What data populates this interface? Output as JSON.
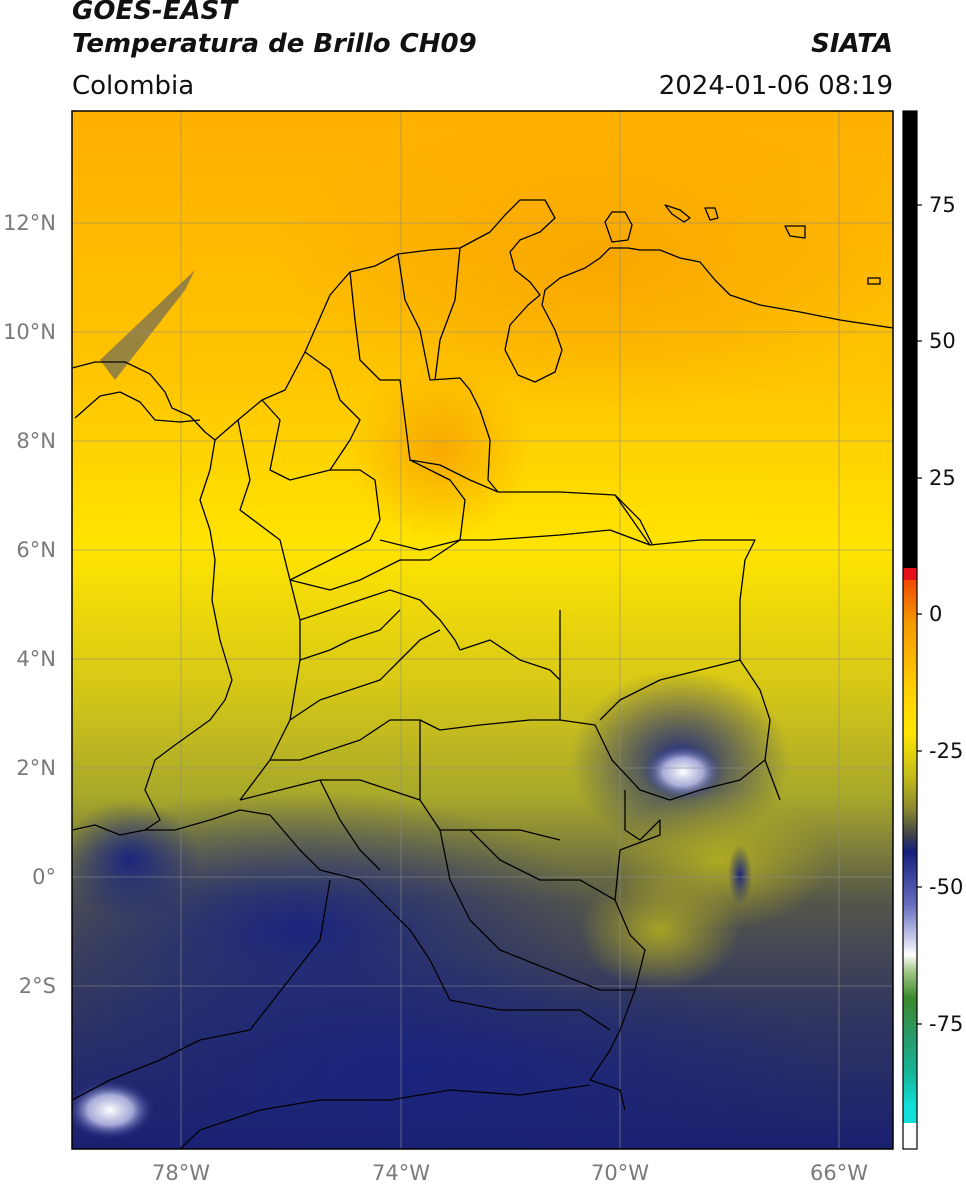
{
  "header": {
    "satellite": "GOES-EAST",
    "product": "Temperatura de Brillo CH09",
    "brand": "SIATA",
    "region": "Colombia",
    "datetime": "2024-01-06 08:19"
  },
  "map": {
    "lat_ticks": [
      "12°N",
      "10°N",
      "8°N",
      "6°N",
      "4°N",
      "2°N",
      "0°",
      "2°S"
    ],
    "lon_ticks": [
      "78°W",
      "74°W",
      "70°W",
      "66°W"
    ],
    "extent": {
      "lon_min": -80,
      "lon_max": -65,
      "lat_min": -5,
      "lat_max": 14
    }
  },
  "colorbar": {
    "ticks": [
      "75",
      "50",
      "25",
      "0",
      "-25",
      "-50",
      "-75"
    ],
    "range": [
      -98,
      90
    ],
    "colors": {
      "top": "#000000",
      "red": "#e8101a",
      "orange": "#f59a00",
      "yellow": "#ffe600",
      "olive": "#b9b51c",
      "gray": "#3f4248",
      "navy": "#141f7e",
      "blue_light": "#b0b4e2",
      "white": "#ffffff",
      "green": "#3a8a2a",
      "teal": "#14b79a",
      "cyan": "#12e0d8"
    }
  }
}
